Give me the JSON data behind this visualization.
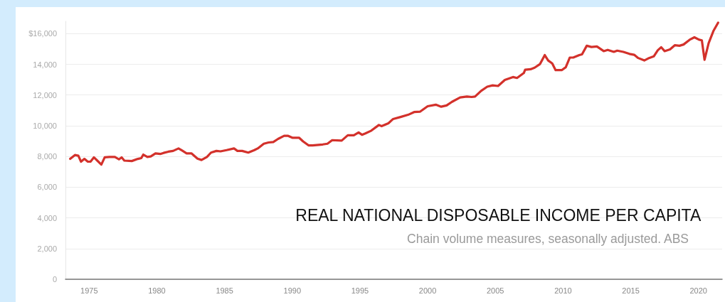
{
  "chart_data": {
    "type": "line",
    "title": "REAL NATIONAL DISPOSABLE INCOME PER CAPITA",
    "subtitle": "Chain volume measures, seasonally adjusted. ABS",
    "xlim": [
      1973.25,
      2021.75
    ],
    "xticks": [
      1975,
      1980,
      1985,
      1990,
      1995,
      2000,
      2005,
      2010,
      2015,
      2020
    ],
    "ylim": [
      0,
      16800
    ],
    "yticks": [
      {
        "value": 0,
        "label": "0"
      },
      {
        "value": 2000,
        "label": "2,000"
      },
      {
        "value": 4000,
        "label": "4,000"
      },
      {
        "value": 6000,
        "label": "6,000"
      },
      {
        "value": 8000,
        "label": "8,000"
      },
      {
        "value": 10000,
        "label": "10,000"
      },
      {
        "value": 12000,
        "label": "12,000"
      },
      {
        "value": 14000,
        "label": "14,000"
      },
      {
        "value": 16000,
        "label": "$16,000"
      }
    ],
    "grid": "y",
    "marker": "none",
    "line_style": "solid",
    "series": [
      {
        "color": "#d3312b",
        "x": [
          1973.6,
          1973.95,
          1974.2,
          1974.4,
          1974.65,
          1974.9,
          1975.1,
          1975.35,
          1975.6,
          1975.9,
          1976.15,
          1976.5,
          1976.9,
          1977.2,
          1977.4,
          1977.6,
          1978.15,
          1978.6,
          1978.85,
          1979.0,
          1979.3,
          1979.55,
          1979.9,
          1980.25,
          1980.5,
          1980.85,
          1981.2,
          1981.6,
          1981.85,
          1982.2,
          1982.55,
          1983.0,
          1983.3,
          1983.7,
          1984.0,
          1984.4,
          1984.7,
          1985.15,
          1985.7,
          1985.95,
          1986.3,
          1986.75,
          1987.2,
          1987.45,
          1987.9,
          1988.25,
          1988.6,
          1988.95,
          1989.4,
          1989.7,
          1990.0,
          1990.5,
          1990.8,
          1991.2,
          1991.5,
          1992.25,
          1992.6,
          1992.95,
          1993.65,
          1994.1,
          1994.55,
          1994.9,
          1995.15,
          1995.4,
          1995.84,
          1996.4,
          1996.6,
          1997.1,
          1997.45,
          1998.0,
          1998.55,
          1999.0,
          1999.45,
          2000.0,
          2000.6,
          2001.0,
          2001.4,
          2001.8,
          2002.4,
          2002.9,
          2003.25,
          2003.5,
          2003.95,
          2004.4,
          2004.8,
          2005.2,
          2005.7,
          2006.3,
          2006.6,
          2007.1,
          2007.2,
          2007.6,
          2007.9,
          2008.3,
          2008.65,
          2008.9,
          2009.2,
          2009.45,
          2009.9,
          2010.2,
          2010.5,
          2010.75,
          2011.2,
          2011.4,
          2011.75,
          2012.1,
          2012.5,
          2013.0,
          2013.3,
          2013.75,
          2014.0,
          2014.45,
          2014.9,
          2015.25,
          2015.55,
          2016.0,
          2016.35,
          2016.7,
          2017.0,
          2017.25,
          2017.5,
          2017.9,
          2018.25,
          2018.6,
          2018.9,
          2019.35,
          2019.7,
          2020.05,
          2020.25,
          2020.45,
          2020.75,
          2021.1,
          2021.45
        ],
        "values": [
          7840,
          8090,
          8050,
          7660,
          7840,
          7660,
          7660,
          7940,
          7730,
          7470,
          7940,
          7970,
          7970,
          7810,
          7940,
          7730,
          7700,
          7840,
          7890,
          8120,
          7970,
          8000,
          8200,
          8160,
          8230,
          8310,
          8360,
          8520,
          8390,
          8200,
          8200,
          7860,
          7770,
          7970,
          8250,
          8360,
          8330,
          8410,
          8520,
          8360,
          8360,
          8250,
          8410,
          8520,
          8830,
          8910,
          8940,
          9140,
          9340,
          9340,
          9220,
          9220,
          8980,
          8720,
          8720,
          8780,
          8830,
          9060,
          9030,
          9380,
          9380,
          9560,
          9410,
          9500,
          9680,
          10050,
          9970,
          10160,
          10440,
          10570,
          10710,
          10890,
          10920,
          11270,
          11370,
          11240,
          11320,
          11560,
          11840,
          11900,
          11870,
          11900,
          12270,
          12540,
          12630,
          12590,
          12980,
          13170,
          13110,
          13430,
          13650,
          13680,
          13780,
          14020,
          14600,
          14250,
          14060,
          13620,
          13620,
          13810,
          14440,
          14440,
          14600,
          14650,
          15210,
          15130,
          15160,
          14860,
          14940,
          14810,
          14890,
          14810,
          14680,
          14620,
          14410,
          14250,
          14410,
          14520,
          14920,
          15110,
          14860,
          14970,
          15240,
          15210,
          15290,
          15600,
          15760,
          15600,
          15560,
          14290,
          15370,
          16160,
          16710
        ]
      }
    ]
  }
}
